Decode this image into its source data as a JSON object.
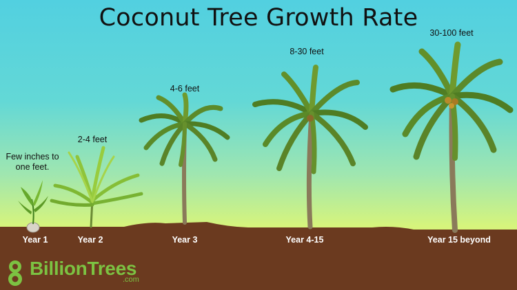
{
  "title": "Coconut Tree Growth Rate",
  "stages": [
    {
      "year": "Year 1",
      "height_lines": [
        "Few inches to",
        "one feet."
      ]
    },
    {
      "year": "Year 2",
      "height_lines": [
        "2-4 feet"
      ]
    },
    {
      "year": "Year 3",
      "height_lines": [
        "4-6 feet"
      ]
    },
    {
      "year": "Year 4-15",
      "height_lines": [
        "8-30 feet"
      ]
    },
    {
      "year": "Year 15 beyond",
      "height_lines": [
        "30-100 feet"
      ]
    }
  ],
  "logo": {
    "number": "8",
    "brand": "BillionTrees",
    "domain": ".com",
    "icon": "leaf-8-icon"
  },
  "colors": {
    "soil": "#6b3a1f",
    "sky_top": "#52d0e0",
    "sky_bottom": "#e4f46e",
    "frond": "#5c8a2a",
    "trunk": "#8a7a5a",
    "brand": "#7cc242"
  }
}
